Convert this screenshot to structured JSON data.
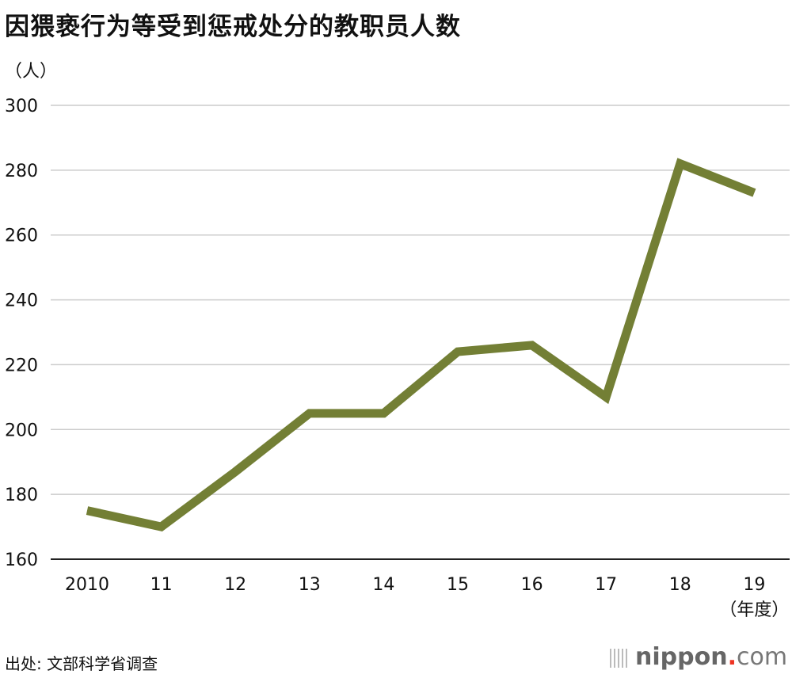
{
  "chart_data": {
    "type": "line",
    "title": "因猥亵行为等受到惩戒处分的教职员人数",
    "ylabel": "（人）",
    "xlabel": "（年度）",
    "categories": [
      "2010",
      "11",
      "12",
      "13",
      "14",
      "15",
      "16",
      "17",
      "18",
      "19"
    ],
    "values": [
      175,
      170,
      187,
      205,
      205,
      224,
      226,
      210,
      282,
      273
    ],
    "ylim": [
      160,
      300
    ],
    "yticks": [
      160,
      180,
      200,
      220,
      240,
      260,
      280,
      300
    ],
    "grid": true,
    "color": "#737f35"
  },
  "source": "出处: 文部科学省调查",
  "logo": {
    "main": "nippon",
    "dot": ".",
    "suffix": "com"
  }
}
